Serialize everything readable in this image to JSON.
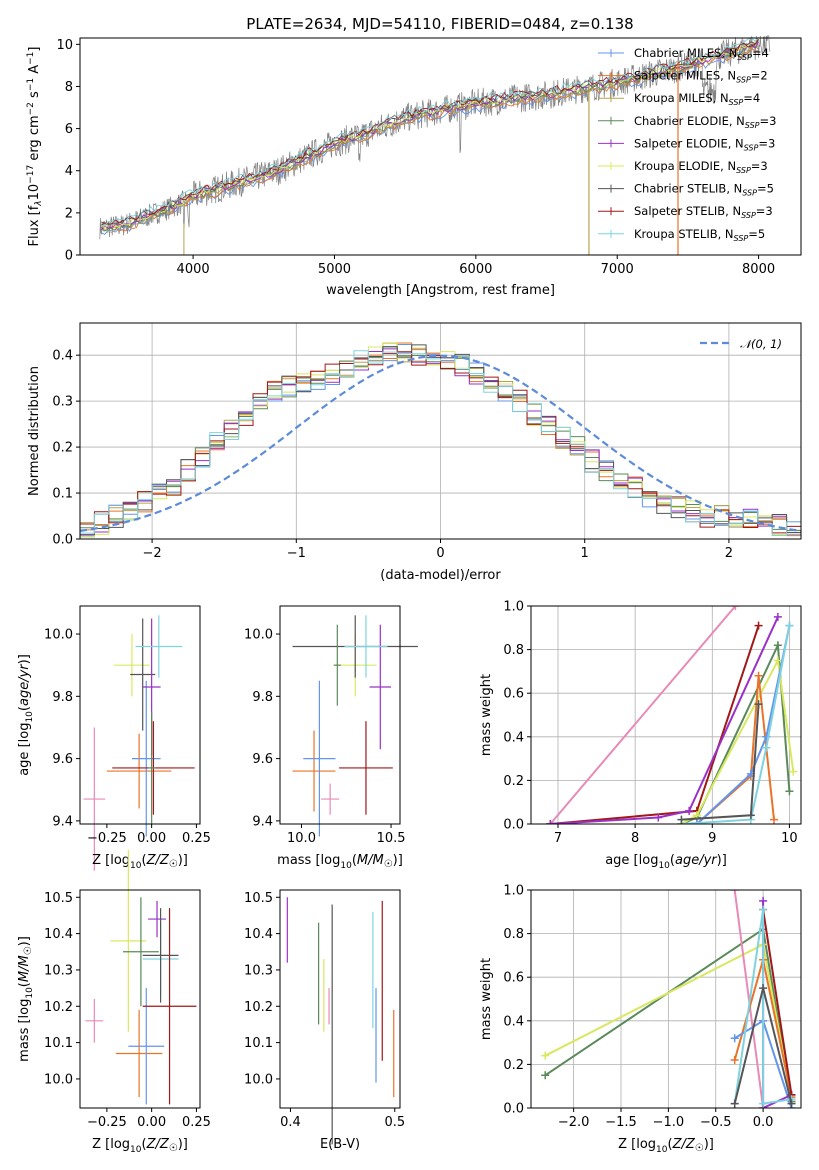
{
  "figure_title": "PLATE=2634, MJD=54110, FIBERID=0484, z=0.138",
  "colors": {
    "chabrier_miles": "#6495ed",
    "salpeter_miles": "#e8742a",
    "kroupa_miles": "#b8a34e",
    "chabrier_elodie": "#5a8a5a",
    "salpeter_elodie": "#9b30c8",
    "kroupa_elodie": "#d8e860",
    "chabrier_stelib": "#555555",
    "salpeter_stelib": "#a01818",
    "kroupa_stelib": "#7fd3e0",
    "pink": "#e88ab8",
    "data_gray": "#808080",
    "normal_curve": "#5b8bd9"
  },
  "legend_spectrum": [
    {
      "text": "Chabrier MILES, N",
      "sub": "SSP",
      "tail": "=4",
      "color": "#6495ed"
    },
    {
      "text": "Salpeter MILES, N",
      "sub": "SSP",
      "tail": "=2",
      "color": "#e8742a"
    },
    {
      "text": "Kroupa MILES, N",
      "sub": "SSP",
      "tail": "=4",
      "color": "#b8a34e"
    },
    {
      "text": "Chabrier ELODIE, N",
      "sub": "SSP",
      "tail": "=3",
      "color": "#5a8a5a"
    },
    {
      "text": "Salpeter ELODIE, N",
      "sub": "SSP",
      "tail": "=3",
      "color": "#9b30c8"
    },
    {
      "text": "Kroupa ELODIE, N",
      "sub": "SSP",
      "tail": "=3",
      "color": "#d8e860"
    },
    {
      "text": "Chabrier STELIB, N",
      "sub": "SSP",
      "tail": "=5",
      "color": "#555555"
    },
    {
      "text": "Salpeter STELIB, N",
      "sub": "SSP",
      "tail": "=3",
      "color": "#a01818"
    },
    {
      "text": "Kroupa STELIB, N",
      "sub": "SSP",
      "tail": "=5",
      "color": "#7fd3e0"
    }
  ],
  "legend_hist": "𝒩(0, 1)",
  "chart_data": [
    {
      "id": "spectrum",
      "type": "line",
      "xlabel": "wavelength [Angstrom, rest frame]",
      "ylabel": "Flux [f_λ 10^-17 erg cm^-2 s^-1 A^-1]",
      "xlim": [
        3200,
        8300
      ],
      "ylim": [
        0,
        10.3
      ],
      "xticks": [
        "4000",
        "5000",
        "6000",
        "7000",
        "8000"
      ],
      "yticks": [
        "0",
        "2",
        "4",
        "6",
        "8",
        "10"
      ],
      "grid": false,
      "legend_position": "right",
      "series_trend": {
        "x": [
          3350,
          3500,
          3900,
          4000,
          4300,
          4600,
          5000,
          5200,
          5500,
          6000,
          6500,
          7000,
          7500,
          7800,
          8000
        ],
        "y": [
          1.3,
          1.4,
          2.4,
          2.8,
          3.4,
          4.0,
          5.3,
          5.7,
          6.5,
          7.2,
          7.6,
          8.2,
          9.0,
          9.6,
          10.0
        ]
      }
    },
    {
      "id": "residual_hist",
      "type": "histogram",
      "xlabel": "(data-model)/error",
      "ylabel": "Normed distribution",
      "xlim": [
        -2.5,
        2.5
      ],
      "ylim": [
        0,
        0.47
      ],
      "xticks": [
        "−2",
        "−1",
        "0",
        "1",
        "2"
      ],
      "yticks": [
        "0.0",
        "0.1",
        "0.2",
        "0.3",
        "0.4"
      ],
      "grid": true,
      "legend_position": "top-right",
      "bin_width": 0.1,
      "bins": [
        -2.45,
        -2.35,
        -2.25,
        -2.15,
        -2.05,
        -1.95,
        -1.85,
        -1.75,
        -1.65,
        -1.55,
        -1.45,
        -1.35,
        -1.25,
        -1.15,
        -1.05,
        -0.95,
        -0.85,
        -0.75,
        -0.65,
        -0.55,
        -0.45,
        -0.35,
        -0.25,
        -0.15,
        -0.05,
        0.05,
        0.15,
        0.25,
        0.35,
        0.45,
        0.55,
        0.65,
        0.75,
        0.85,
        0.95,
        1.05,
        1.15,
        1.25,
        1.35,
        1.45,
        1.55,
        1.65,
        1.75,
        1.85,
        1.95,
        2.05,
        2.15,
        2.25,
        2.35,
        2.45
      ],
      "baseline": [
        0.03,
        0.035,
        0.05,
        0.06,
        0.08,
        0.1,
        0.12,
        0.15,
        0.18,
        0.21,
        0.24,
        0.27,
        0.3,
        0.32,
        0.33,
        0.34,
        0.35,
        0.36,
        0.37,
        0.39,
        0.4,
        0.41,
        0.41,
        0.4,
        0.4,
        0.39,
        0.38,
        0.36,
        0.34,
        0.32,
        0.3,
        0.27,
        0.25,
        0.22,
        0.2,
        0.17,
        0.15,
        0.13,
        0.11,
        0.09,
        0.08,
        0.07,
        0.06,
        0.05,
        0.05,
        0.04,
        0.04,
        0.03,
        0.03,
        0.02
      ]
    },
    {
      "id": "age_vs_Z",
      "type": "errorbar",
      "xlabel": "Z [log10(Z/Z☉)]",
      "ylabel": "age [log10(age/yr)]",
      "xlim": [
        -0.4,
        0.27
      ],
      "ylim": [
        9.39,
        10.09
      ],
      "xticks": [
        "−0.25",
        "0.00",
        "0.25"
      ],
      "yticks": [
        "9.4",
        "9.6",
        "9.8",
        "10.0"
      ],
      "points": [
        {
          "x": -0.32,
          "y": 9.47,
          "ex": 0.06,
          "ey": 0.23,
          "color": "#e88ab8"
        },
        {
          "x": -0.07,
          "y": 9.56,
          "ex": 0.18,
          "ey": 0.12,
          "color": "#e8742a"
        },
        {
          "x": -0.03,
          "y": 9.6,
          "ex": 0.08,
          "ey": 0.25,
          "color": "#6495ed"
        },
        {
          "x": -0.11,
          "y": 9.9,
          "ex": 0.1,
          "ey": 0.1,
          "color": "#d8e860"
        },
        {
          "x": -0.05,
          "y": 9.87,
          "ex": 0.07,
          "ey": 0.18,
          "color": "#555555"
        },
        {
          "x": 0.0,
          "y": 9.83,
          "ex": 0.05,
          "ey": 0.22,
          "color": "#9b30c8"
        },
        {
          "x": 0.04,
          "y": 9.96,
          "ex": 0.13,
          "ey": 0.1,
          "color": "#7fd3e0"
        },
        {
          "x": 0.01,
          "y": 9.57,
          "ex": 0.23,
          "ey": 0.15,
          "color": "#a01818"
        },
        {
          "x": 0.0,
          "y": 9.57,
          "ex": 0.02,
          "ey": 0.18,
          "color": "#5a8a5a"
        }
      ]
    },
    {
      "id": "age_vs_mass",
      "type": "errorbar",
      "xlabel": "mass [log10(M/M☉)]",
      "ylabel": "",
      "xlim": [
        9.88,
        10.55
      ],
      "ylim": [
        9.39,
        10.09
      ],
      "xticks": [
        "10.0",
        "10.5"
      ],
      "yticks": [
        "9.4",
        "9.6",
        "9.8",
        "10.0"
      ],
      "points": [
        {
          "x": 10.16,
          "y": 9.47,
          "ex": 0.05,
          "ey": 0.05,
          "color": "#e88ab8"
        },
        {
          "x": 10.07,
          "y": 9.56,
          "ex": 0.12,
          "ey": 0.13,
          "color": "#e8742a"
        },
        {
          "x": 10.1,
          "y": 9.6,
          "ex": 0.09,
          "ey": 0.25,
          "color": "#6495ed"
        },
        {
          "x": 10.3,
          "y": 9.9,
          "ex": 0.12,
          "ey": 0.1,
          "color": "#d8e860"
        },
        {
          "x": 10.3,
          "y": 9.96,
          "ex": 0.35,
          "ey": 0.1,
          "color": "#555555"
        },
        {
          "x": 10.44,
          "y": 9.83,
          "ex": 0.06,
          "ey": 0.2,
          "color": "#9b30c8"
        },
        {
          "x": 10.36,
          "y": 9.96,
          "ex": 0.12,
          "ey": 0.1,
          "color": "#7fd3e0"
        },
        {
          "x": 10.36,
          "y": 9.57,
          "ex": 0.15,
          "ey": 0.15,
          "color": "#a01818"
        },
        {
          "x": 10.2,
          "y": 9.9,
          "ex": 0.02,
          "ey": 0.13,
          "color": "#5a8a5a"
        }
      ]
    },
    {
      "id": "weight_vs_age",
      "type": "line",
      "xlabel": "age [log10(age/yr)]",
      "ylabel": "mass weight",
      "xlim": [
        6.65,
        10.15
      ],
      "ylim": [
        0,
        1.0
      ],
      "xticks": [
        "7",
        "8",
        "9",
        "10"
      ],
      "yticks": [
        "0.0",
        "0.2",
        "0.4",
        "0.6",
        "0.8",
        "1.0"
      ],
      "grid": true,
      "series": [
        {
          "color": "#e88ab8",
          "x": [
            6.9,
            9.3
          ],
          "y": [
            0.0,
            1.0
          ]
        },
        {
          "color": "#a01818",
          "x": [
            6.9,
            8.8,
            9.6
          ],
          "y": [
            0.0,
            0.06,
            0.91
          ]
        },
        {
          "color": "#9b30c8",
          "x": [
            6.9,
            8.3,
            8.7,
            9.85
          ],
          "y": [
            0.0,
            0.03,
            0.06,
            0.95
          ]
        },
        {
          "color": "#5a8a5a",
          "x": [
            8.6,
            8.8,
            9.85,
            10.0
          ],
          "y": [
            0.0,
            0.03,
            0.82,
            0.15
          ]
        },
        {
          "color": "#d8e860",
          "x": [
            8.6,
            8.8,
            9.85,
            10.05
          ],
          "y": [
            0.0,
            0.04,
            0.75,
            0.24
          ]
        },
        {
          "color": "#e8742a",
          "x": [
            8.8,
            9.5,
            9.6,
            9.8
          ],
          "y": [
            0.0,
            0.22,
            0.68,
            0.02
          ]
        },
        {
          "color": "#6495ed",
          "x": [
            8.8,
            9.5,
            9.7,
            10.0
          ],
          "y": [
            0.0,
            0.23,
            0.4,
            0.91
          ]
        },
        {
          "color": "#7fd3e0",
          "x": [
            8.6,
            9.5,
            9.7,
            10.0
          ],
          "y": [
            0.0,
            0.02,
            0.35,
            0.91
          ]
        },
        {
          "color": "#555555",
          "x": [
            8.6,
            9.5,
            9.6
          ],
          "y": [
            0.02,
            0.04,
            0.55
          ]
        }
      ]
    },
    {
      "id": "mass_vs_Z",
      "type": "errorbar",
      "xlabel": "Z [log10(Z/Z☉)]",
      "ylabel": "mass [log10(M/M☉)]",
      "xlim": [
        -0.4,
        0.27
      ],
      "ylim": [
        9.92,
        10.52
      ],
      "xticks": [
        "−0.25",
        "0.00",
        "0.25"
      ],
      "yticks": [
        "10.0",
        "10.1",
        "10.2",
        "10.3",
        "10.4",
        "10.5"
      ],
      "points": [
        {
          "x": -0.32,
          "y": 10.16,
          "ex": 0.05,
          "ey": 0.06,
          "color": "#e88ab8"
        },
        {
          "x": -0.07,
          "y": 10.07,
          "ex": 0.13,
          "ey": 0.12,
          "color": "#e8742a"
        },
        {
          "x": -0.03,
          "y": 10.09,
          "ex": 0.1,
          "ey": 0.16,
          "color": "#6495ed"
        },
        {
          "x": -0.13,
          "y": 10.38,
          "ex": 0.1,
          "ey": 0.25,
          "color": "#d8e860"
        },
        {
          "x": -0.06,
          "y": 10.35,
          "ex": 0.1,
          "ey": 0.15,
          "color": "#5a8a5a"
        },
        {
          "x": 0.03,
          "y": 10.44,
          "ex": 0.05,
          "ey": 0.05,
          "color": "#9b30c8"
        },
        {
          "x": 0.05,
          "y": 10.33,
          "ex": 0.1,
          "ey": 0.1,
          "color": "#7fd3e0"
        },
        {
          "x": 0.1,
          "y": 10.2,
          "ex": 0.15,
          "ey": 0.27,
          "color": "#a01818"
        },
        {
          "x": 0.05,
          "y": 10.34,
          "ex": 0.1,
          "ey": 0.13,
          "color": "#555555"
        }
      ]
    },
    {
      "id": "mass_vs_ebv",
      "type": "errorbar",
      "xlabel": "E(B-V)",
      "ylabel": "",
      "xlim": [
        0.39,
        0.505
      ],
      "ylim": [
        9.92,
        10.52
      ],
      "xticks": [
        "0.4",
        "0.5"
      ],
      "yticks": [
        "10.0",
        "10.1",
        "10.2",
        "10.3",
        "10.4",
        "10.5"
      ],
      "points": [
        {
          "x": 0.397,
          "y": 10.41,
          "ex": 0.0,
          "ey": 0.09,
          "color": "#9b30c8"
        },
        {
          "x": 0.427,
          "y": 10.29,
          "ex": 0.0,
          "ey": 0.14,
          "color": "#5a8a5a"
        },
        {
          "x": 0.432,
          "y": 10.23,
          "ex": 0.0,
          "ey": 0.1,
          "color": "#d8e860"
        },
        {
          "x": 0.437,
          "y": 10.2,
          "ex": 0.0,
          "ey": 0.05,
          "color": "#e88ab8"
        },
        {
          "x": 0.44,
          "y": 10.15,
          "ex": 0.0,
          "ey": 0.33,
          "color": "#555555"
        },
        {
          "x": 0.479,
          "y": 10.3,
          "ex": 0.0,
          "ey": 0.16,
          "color": "#7fd3e0"
        },
        {
          "x": 0.482,
          "y": 10.12,
          "ex": 0.0,
          "ey": 0.13,
          "color": "#6495ed"
        },
        {
          "x": 0.488,
          "y": 10.27,
          "ex": 0.0,
          "ey": 0.22,
          "color": "#a01818"
        },
        {
          "x": 0.499,
          "y": 10.07,
          "ex": 0.0,
          "ey": 0.12,
          "color": "#e8742a"
        }
      ]
    },
    {
      "id": "weight_vs_Z",
      "type": "line",
      "xlabel": "Z [log10(Z/Z☉)]",
      "ylabel": "mass weight",
      "xlim": [
        -2.45,
        0.4
      ],
      "ylim": [
        0,
        1.0
      ],
      "xticks": [
        "−2.0",
        "−1.5",
        "−1.0",
        "−0.5",
        "0.0"
      ],
      "yticks": [
        "0.0",
        "0.2",
        "0.4",
        "0.6",
        "0.8",
        "1.0"
      ],
      "grid": true,
      "series": [
        {
          "color": "#5a8a5a",
          "x": [
            -2.3,
            0.0,
            0.3
          ],
          "y": [
            0.15,
            0.82,
            0.03
          ]
        },
        {
          "color": "#d8e860",
          "x": [
            -2.3,
            0.0,
            0.3
          ],
          "y": [
            0.24,
            0.75,
            0.04
          ]
        },
        {
          "color": "#e88ab8",
          "x": [
            -0.3,
            0.0
          ],
          "y": [
            1.0,
            0.0
          ]
        },
        {
          "color": "#e8742a",
          "x": [
            -0.3,
            0.0,
            0.3
          ],
          "y": [
            0.22,
            0.68,
            0.05
          ]
        },
        {
          "color": "#6495ed",
          "x": [
            -0.3,
            0.0,
            0.3
          ],
          "y": [
            0.32,
            0.4,
            0.0
          ]
        },
        {
          "color": "#9b30c8",
          "x": [
            0.0,
            0.0,
            0.3
          ],
          "y": [
            0.95,
            0.0,
            0.06
          ]
        },
        {
          "color": "#a01818",
          "x": [
            0.0,
            0.3
          ],
          "y": [
            0.91,
            0.06
          ]
        },
        {
          "color": "#7fd3e0",
          "x": [
            -0.3,
            0.0,
            0.0,
            0.3
          ],
          "y": [
            0.02,
            0.91,
            0.02,
            0.04
          ]
        },
        {
          "color": "#555555",
          "x": [
            -0.3,
            0.0,
            0.3
          ],
          "y": [
            0.02,
            0.55,
            0.02
          ]
        }
      ]
    }
  ]
}
